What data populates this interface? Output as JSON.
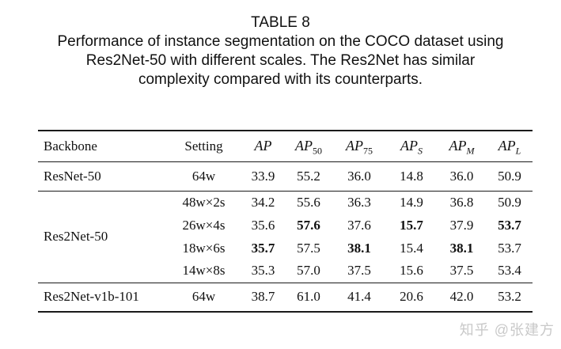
{
  "page": {
    "title": "TABLE 8",
    "caption_lines": [
      "Performance of instance segmentation on the COCO dataset using",
      "Res2Net-50 with different scales. The Res2Net has similar",
      "complexity compared with its counterparts."
    ],
    "watermark": "知乎 @张建方"
  },
  "colors": {
    "text": "#111111",
    "rule": "#1a1a1a",
    "watermark": "#c9c9c9"
  },
  "table": {
    "headers": [
      {
        "text": "Backbone",
        "math": false,
        "sub": ""
      },
      {
        "text": "Setting",
        "math": false,
        "sub": ""
      },
      {
        "text": "AP",
        "math": true,
        "sub": ""
      },
      {
        "text": "AP",
        "math": true,
        "sub": "50"
      },
      {
        "text": "AP",
        "math": true,
        "sub": "75"
      },
      {
        "text": "AP",
        "math": true,
        "sub": "S"
      },
      {
        "text": "AP",
        "math": true,
        "sub": "M"
      },
      {
        "text": "AP",
        "math": true,
        "sub": "L"
      }
    ],
    "rows": [
      {
        "backbone": "ResNet-50",
        "rowspan": 1,
        "setting": "64w",
        "cells": [
          "33.9",
          "55.2",
          "36.0",
          "14.8",
          "36.0",
          "50.9"
        ],
        "bold": [
          false,
          false,
          false,
          false,
          false,
          false
        ],
        "group_end": true
      },
      {
        "backbone": "Res2Net-50",
        "rowspan": 4,
        "setting": "48w×2s",
        "cells": [
          "34.2",
          "55.6",
          "36.3",
          "14.9",
          "36.8",
          "50.9"
        ],
        "bold": [
          false,
          false,
          false,
          false,
          false,
          false
        ],
        "group_end": false
      },
      {
        "setting": "26w×4s",
        "cells": [
          "35.6",
          "57.6",
          "37.6",
          "15.7",
          "37.9",
          "53.7"
        ],
        "bold": [
          false,
          true,
          false,
          true,
          false,
          true
        ],
        "group_end": false
      },
      {
        "setting": "18w×6s",
        "cells": [
          "35.7",
          "57.5",
          "38.1",
          "15.4",
          "38.1",
          "53.7"
        ],
        "bold": [
          true,
          false,
          true,
          false,
          true,
          false
        ],
        "group_end": false
      },
      {
        "setting": "14w×8s",
        "cells": [
          "35.3",
          "57.0",
          "37.5",
          "15.6",
          "37.5",
          "53.4"
        ],
        "bold": [
          false,
          false,
          false,
          false,
          false,
          false
        ],
        "group_end": true
      },
      {
        "backbone": "Res2Net-v1b-101",
        "rowspan": 1,
        "setting": "64w",
        "cells": [
          "38.7",
          "61.0",
          "41.4",
          "20.6",
          "42.0",
          "53.2"
        ],
        "bold": [
          false,
          false,
          false,
          false,
          false,
          false
        ],
        "group_end": true
      }
    ]
  }
}
